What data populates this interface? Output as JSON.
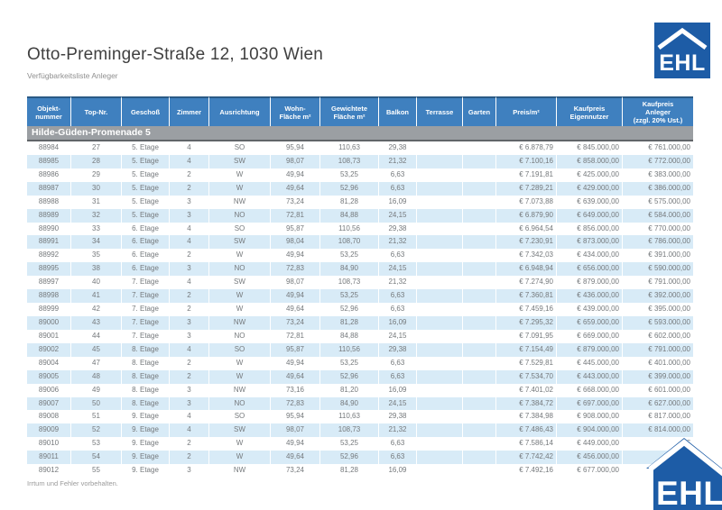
{
  "page": {
    "title": "Otto-Preminger-Straße 12, 1030 Wien",
    "subtitle": "Verfügbarkeitsliste Anleger",
    "footer_note": "Irrtum und Fehler vorbehalten.",
    "logo_text": "EHL"
  },
  "colors": {
    "header_bg": "#3f80bf",
    "header_border_top": "#2a5a85",
    "band_bg": "#9b9fa3",
    "band_border": "#616568",
    "row_alt_bg": "#d8ebf7",
    "row_text": "#75797c",
    "logo_blue": "#1d5ca6"
  },
  "table": {
    "section_header": "Hilde-Güden-Promenade 5",
    "columns": [
      "Objekt-\nnummer",
      "Top-Nr.",
      "Geschoß",
      "Zimmer",
      "Ausrichtung",
      "Wohn-\nFläche m²",
      "Gewichtete\nFläche m²",
      "Balkon",
      "Terrasse",
      "Garten",
      "Preis/m²",
      "Kaufpreis\nEigennutzer",
      "Kaufpreis\nAnleger\n(zzgl. 20% Ust.)"
    ],
    "rows": [
      [
        "88984",
        "27",
        "5. Etage",
        "4",
        "SO",
        "95,94",
        "110,63",
        "29,38",
        "",
        "",
        "€ 6.878,79",
        "€ 845.000,00",
        "€ 761.000,00"
      ],
      [
        "88985",
        "28",
        "5. Etage",
        "4",
        "SW",
        "98,07",
        "108,73",
        "21,32",
        "",
        "",
        "€ 7.100,16",
        "€ 858.000,00",
        "€ 772.000,00"
      ],
      [
        "88986",
        "29",
        "5. Etage",
        "2",
        "W",
        "49,94",
        "53,25",
        "6,63",
        "",
        "",
        "€ 7.191,81",
        "€ 425.000,00",
        "€ 383.000,00"
      ],
      [
        "88987",
        "30",
        "5. Etage",
        "2",
        "W",
        "49,64",
        "52,96",
        "6,63",
        "",
        "",
        "€ 7.289,21",
        "€ 429.000,00",
        "€ 386.000,00"
      ],
      [
        "88988",
        "31",
        "5. Etage",
        "3",
        "NW",
        "73,24",
        "81,28",
        "16,09",
        "",
        "",
        "€ 7.073,88",
        "€ 639.000,00",
        "€ 575.000,00"
      ],
      [
        "88989",
        "32",
        "5. Etage",
        "3",
        "NO",
        "72,81",
        "84,88",
        "24,15",
        "",
        "",
        "€ 6.879,90",
        "€ 649.000,00",
        "€ 584.000,00"
      ],
      [
        "88990",
        "33",
        "6. Etage",
        "4",
        "SO",
        "95,87",
        "110,56",
        "29,38",
        "",
        "",
        "€ 6.964,54",
        "€ 856.000,00",
        "€ 770.000,00"
      ],
      [
        "88991",
        "34",
        "6. Etage",
        "4",
        "SW",
        "98,04",
        "108,70",
        "21,32",
        "",
        "",
        "€ 7.230,91",
        "€ 873.000,00",
        "€ 786.000,00"
      ],
      [
        "88992",
        "35",
        "6. Etage",
        "2",
        "W",
        "49,94",
        "53,25",
        "6,63",
        "",
        "",
        "€ 7.342,03",
        "€ 434.000,00",
        "€ 391.000,00"
      ],
      [
        "88995",
        "38",
        "6. Etage",
        "3",
        "NO",
        "72,83",
        "84,90",
        "24,15",
        "",
        "",
        "€ 6.948,94",
        "€ 656.000,00",
        "€ 590.000,00"
      ],
      [
        "88997",
        "40",
        "7. Etage",
        "4",
        "SW",
        "98,07",
        "108,73",
        "21,32",
        "",
        "",
        "€ 7.274,90",
        "€ 879.000,00",
        "€ 791.000,00"
      ],
      [
        "88998",
        "41",
        "7. Etage",
        "2",
        "W",
        "49,94",
        "53,25",
        "6,63",
        "",
        "",
        "€ 7.360,81",
        "€ 436.000,00",
        "€ 392.000,00"
      ],
      [
        "88999",
        "42",
        "7. Etage",
        "2",
        "W",
        "49,64",
        "52,96",
        "6,63",
        "",
        "",
        "€ 7.459,16",
        "€ 439.000,00",
        "€ 395.000,00"
      ],
      [
        "89000",
        "43",
        "7. Etage",
        "3",
        "NW",
        "73,24",
        "81,28",
        "16,09",
        "",
        "",
        "€ 7.295,32",
        "€ 659.000,00",
        "€ 593.000,00"
      ],
      [
        "89001",
        "44",
        "7. Etage",
        "3",
        "NO",
        "72,81",
        "84,88",
        "24,15",
        "",
        "",
        "€ 7.091,95",
        "€ 669.000,00",
        "€ 602.000,00"
      ],
      [
        "89002",
        "45",
        "8. Etage",
        "4",
        "SO",
        "95,87",
        "110,56",
        "29,38",
        "",
        "",
        "€ 7.154,49",
        "€ 879.000,00",
        "€ 791.000,00"
      ],
      [
        "89004",
        "47",
        "8. Etage",
        "2",
        "W",
        "49,94",
        "53,25",
        "6,63",
        "",
        "",
        "€ 7.529,81",
        "€ 445.000,00",
        "€ 401.000,00"
      ],
      [
        "89005",
        "48",
        "8. Etage",
        "2",
        "W",
        "49,64",
        "52,96",
        "6,63",
        "",
        "",
        "€ 7.534,70",
        "€ 443.000,00",
        "€ 399.000,00"
      ],
      [
        "89006",
        "49",
        "8. Etage",
        "3",
        "NW",
        "73,16",
        "81,20",
        "16,09",
        "",
        "",
        "€ 7.401,02",
        "€ 668.000,00",
        "€ 601.000,00"
      ],
      [
        "89007",
        "50",
        "8. Etage",
        "3",
        "NO",
        "72,83",
        "84,90",
        "24,15",
        "",
        "",
        "€ 7.384,72",
        "€ 697.000,00",
        "€ 627.000,00"
      ],
      [
        "89008",
        "51",
        "9. Etage",
        "4",
        "SO",
        "95,94",
        "110,63",
        "29,38",
        "",
        "",
        "€ 7.384,98",
        "€ 908.000,00",
        "€ 817.000,00"
      ],
      [
        "89009",
        "52",
        "9. Etage",
        "4",
        "SW",
        "98,07",
        "108,73",
        "21,32",
        "",
        "",
        "€ 7.486,43",
        "€ 904.000,00",
        "€ 814.000,00"
      ],
      [
        "89010",
        "53",
        "9. Etage",
        "2",
        "W",
        "49,94",
        "53,25",
        "6,63",
        "",
        "",
        "€ 7.586,14",
        "€ 449.000,00",
        "€"
      ],
      [
        "89011",
        "54",
        "9. Etage",
        "2",
        "W",
        "49,64",
        "52,96",
        "6,63",
        "",
        "",
        "€ 7.742,42",
        "€ 456.000,00",
        "€"
      ],
      [
        "89012",
        "55",
        "9. Etage",
        "3",
        "NW",
        "73,24",
        "81,28",
        "16,09",
        "",
        "",
        "€ 7.492,16",
        "€ 677.000,00",
        "€"
      ]
    ]
  }
}
